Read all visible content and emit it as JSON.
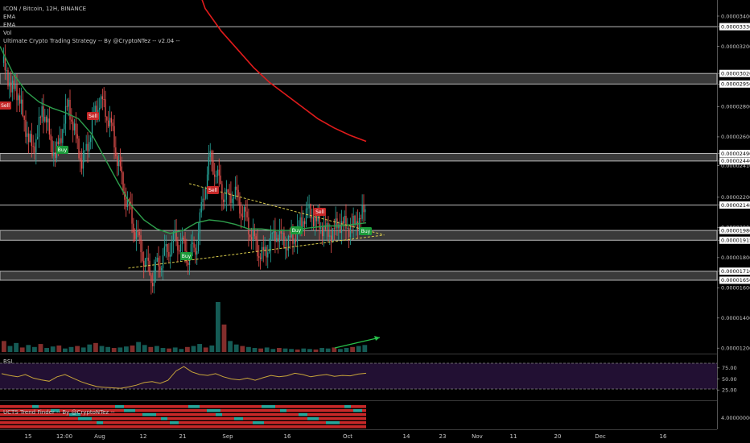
{
  "header": {
    "title": "ICON / Bitcoin, 12H, BINANCE",
    "indicators": [
      "EMA",
      "EMA",
      "Vol",
      "Ultimate Crypto Trading Strategy -- By @CryptoNTez -- v2.04 --"
    ]
  },
  "rsi_label": "RSI",
  "ucts_label": "UCTS Trend Finder -- By @CryptoNTez --",
  "colors": {
    "background": "#000000",
    "up": "#26a69a",
    "down": "#ef5350",
    "ema_fast": "#2e9e4c",
    "ema_slow": "#e01b1b",
    "triangle": "#d6c94b",
    "zone_fill": "#6a6a6a",
    "zone_border": "#b8b8b8",
    "rsi_line": "#c8a53a",
    "rsi_band": "#221033",
    "buy": "#1b9b3a",
    "sell": "#c62828",
    "arrow": "#27c04a"
  },
  "price_axis": {
    "ticks": [
      "0.00003400",
      "0.00003330",
      "0.00003200",
      "0.00003020",
      "0.00002950",
      "0.00002800",
      "0.00002600",
      "0.00002490",
      "0.00002440",
      "0.00002410",
      "0.00002200",
      "0.00002148",
      "0.00002000",
      "0.00001980",
      "0.00001915",
      "0.00001800",
      "0.00001710",
      "0.00001650",
      "0.00001600",
      "0.00001400",
      "0.00001200"
    ],
    "boxed": [
      "0.00003330",
      "0.00003020",
      "0.00002950",
      "0.00002490",
      "0.00002440",
      "0.00002148",
      "0.00001980",
      "0.00001915",
      "0.00001710",
      "0.00001650"
    ]
  },
  "rsi_axis": {
    "ticks": [
      "75.00",
      "50.00",
      "25.00"
    ]
  },
  "ucts_axis": {
    "ticks": [
      "4.00000000"
    ]
  },
  "x_axis": {
    "ticks": [
      "15",
      "12:00",
      "Aug",
      "12",
      "21",
      "Sep",
      "16",
      "Oct",
      "14",
      "23",
      "Nov",
      "11",
      "20",
      "Dec",
      "16"
    ]
  },
  "signals": [
    {
      "type": "Sell",
      "label": "Sell"
    },
    {
      "type": "Buy",
      "label": "Buy"
    },
    {
      "type": "Sell",
      "label": "Sell"
    },
    {
      "type": "Buy",
      "label": "Buy"
    },
    {
      "type": "Sell",
      "label": "Sell"
    },
    {
      "type": "Buy",
      "label": "Buy"
    },
    {
      "type": "Sell",
      "label": "Sell"
    },
    {
      "type": "Buy",
      "label": "Buy"
    }
  ],
  "chart_data": {
    "type": "candlestick",
    "title": "ICON / Bitcoin, 12H, BINANCE",
    "price_range": [
      1.18e-05,
      3.48e-05
    ],
    "horizontal_zones": [
      {
        "low": 2.95e-05,
        "high": 3.02e-05
      },
      {
        "low": 2.44e-05,
        "high": 2.49e-05
      },
      {
        "low": 1.915e-05,
        "high": 1.98e-05
      },
      {
        "low": 1.65e-05,
        "high": 1.71e-05
      }
    ],
    "horizontal_lines": [
      3.33e-05,
      2.148e-05
    ],
    "triangle": {
      "upper": {
        "from": {
          "date": "Aug 23",
          "price": 2.29e-05
        },
        "to": {
          "date": "Oct 10",
          "price": 1.95e-05
        }
      },
      "lower": {
        "from": {
          "date": "Aug 8",
          "price": 1.73e-05
        },
        "to": {
          "date": "Oct 10",
          "price": 1.95e-05
        }
      }
    },
    "close_path": [
      3.09e-05,
      3.04e-05,
      2.9e-05,
      2.94e-05,
      2.83e-05,
      2.7e-05,
      2.58e-05,
      2.52e-05,
      2.62e-05,
      2.78e-05,
      2.72e-05,
      2.55e-05,
      2.49e-05,
      2.56e-05,
      2.72e-05,
      2.81e-05,
      2.68e-05,
      2.55e-05,
      2.43e-05,
      2.51e-05,
      2.64e-05,
      2.76e-05,
      2.84e-05,
      2.8e-05,
      2.72e-05,
      2.62e-05,
      2.46e-05,
      2.31e-05,
      2.19e-05,
      2.09e-05,
      1.98e-05,
      1.89e-05,
      1.8e-05,
      1.72e-05,
      1.67e-05,
      1.74e-05,
      1.79e-05,
      1.83e-05,
      1.88e-05,
      1.92e-05,
      1.9e-05,
      1.86e-05,
      1.81e-05,
      1.84e-05,
      1.9e-05,
      2.11e-05,
      2.32e-05,
      2.45e-05,
      2.39e-05,
      2.29e-05,
      2.22e-05,
      2.18e-05,
      2.24e-05,
      2.2e-05,
      2.12e-05,
      2.06e-05,
      1.98e-05,
      1.9e-05,
      1.84e-05,
      1.81e-05,
      1.87e-05,
      1.93e-05,
      1.96e-05,
      1.93e-05,
      1.89e-05,
      1.91e-05,
      1.94e-05,
      1.99e-05,
      2.06e-05,
      2.11e-05,
      2.08e-05,
      2.03e-05,
      2.01e-05,
      1.98e-05,
      1.95e-05,
      1.99e-05,
      2.02e-05,
      2.03e-05,
      1.99e-05,
      2.01e-05,
      2.03e-05,
      2.07e-05,
      2.12e-05
    ],
    "ema_fast": [
      3.2e-05,
      3.02e-05,
      2.9e-05,
      2.83e-05,
      2.79e-05,
      2.76e-05,
      2.72e-05,
      2.62e-05,
      2.46e-05,
      2.3e-05,
      2.15e-05,
      2.05e-05,
      1.99e-05,
      1.96e-05,
      1.98e-05,
      2.03e-05,
      2.05e-05,
      2.04e-05,
      2.02e-05,
      1.99e-05,
      1.99e-05,
      1.98e-05,
      1.98e-05,
      1.99e-05,
      2e-05,
      2.01e-05,
      2.01e-05,
      2.02e-05,
      2.03e-05
    ],
    "ema_slow": [
      5.2e-05,
      4.3e-05,
      3.75e-05,
      3.45e-05,
      3.3e-05,
      3.18e-05,
      3.06e-05,
      2.96e-05,
      2.88e-05,
      2.8e-05,
      2.72e-05,
      2.66e-05,
      2.61e-05,
      2.57e-05
    ],
    "rsi": {
      "bands": [
        70,
        30
      ],
      "axis_ticks": [
        75,
        50,
        25
      ],
      "values": [
        62,
        58,
        55,
        60,
        52,
        48,
        45,
        55,
        60,
        52,
        44,
        38,
        33,
        31,
        30,
        29,
        32,
        36,
        42,
        44,
        40,
        47,
        68,
        78,
        66,
        60,
        58,
        62,
        55,
        50,
        48,
        52,
        47,
        53,
        58,
        55,
        57,
        63,
        60,
        55,
        58,
        60,
        56,
        58,
        57,
        61,
        63
      ]
    },
    "volume": {
      "values": [
        0.22,
        0.12,
        0.18,
        0.09,
        0.14,
        0.1,
        0.16,
        0.08,
        0.11,
        0.13,
        0.07,
        0.1,
        0.12,
        0.09,
        0.15,
        0.18,
        0.12,
        0.1,
        0.08,
        0.09,
        0.11,
        0.13,
        0.2,
        0.14,
        0.1,
        0.12,
        0.08,
        0.07,
        0.09,
        0.06,
        0.1,
        0.12,
        0.16,
        0.09,
        0.13,
        1.0,
        0.55,
        0.22,
        0.15,
        0.12,
        0.1,
        0.08,
        0.07,
        0.09,
        0.06,
        0.08,
        0.07,
        0.06,
        0.05,
        0.07,
        0.06,
        0.05,
        0.08,
        0.07,
        0.09,
        0.06,
        0.08,
        0.1,
        0.12,
        0.14
      ]
    }
  }
}
